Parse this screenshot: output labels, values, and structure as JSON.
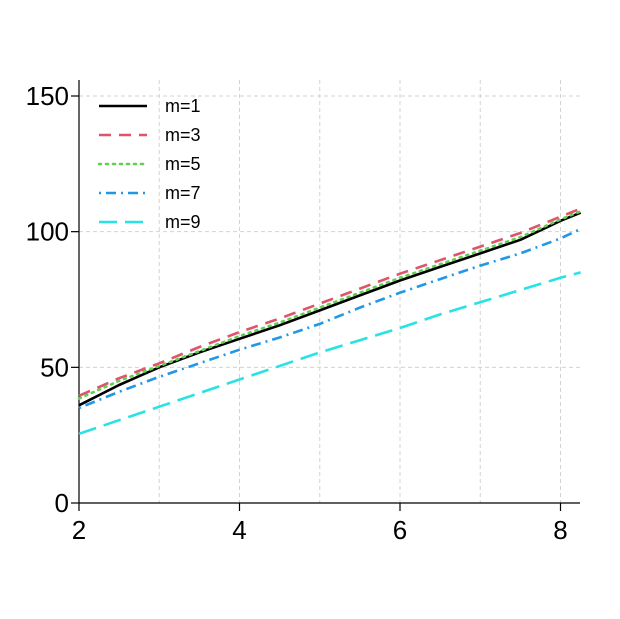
{
  "chart_data": {
    "type": "line",
    "title": "",
    "xlabel": "",
    "ylabel": "",
    "xlim": [
      2,
      8.25
    ],
    "ylim": [
      0,
      150
    ],
    "x_ticks": [
      "2",
      "4",
      "6",
      "8"
    ],
    "y_ticks": [
      "0",
      "50",
      "100",
      "150"
    ],
    "x_tick_values": [
      2,
      4,
      6,
      8
    ],
    "y_tick_values": [
      0,
      50,
      100,
      150
    ],
    "x_minor_ticks": [
      3,
      5,
      7
    ],
    "grid": true,
    "legend_position": "top-left",
    "series": [
      {
        "name": "m=1",
        "color": "#000000",
        "dash": "solid",
        "x": [
          2,
          2.5,
          3,
          3.5,
          4,
          4.5,
          5,
          5.5,
          6,
          6.5,
          7,
          7.5,
          8,
          8.25
        ],
        "y": [
          36,
          43.5,
          50,
          55.5,
          60.5,
          65.5,
          71,
          76.5,
          82,
          87,
          92,
          97,
          104,
          107
        ]
      },
      {
        "name": "m=3",
        "color": "#df536b",
        "dash": "dashed",
        "x": [
          2,
          2.5,
          3,
          3.5,
          4,
          4.5,
          5,
          5.5,
          6,
          6.5,
          7,
          7.5,
          8,
          8.25
        ],
        "y": [
          39.5,
          46,
          51.5,
          57.5,
          63,
          68,
          73.5,
          79,
          84.5,
          89.5,
          94.5,
          99.5,
          105.5,
          108.5
        ]
      },
      {
        "name": "m=5",
        "color": "#61d04f",
        "dash": "dotted",
        "x": [
          2,
          2.5,
          3,
          3.5,
          4,
          4.5,
          5,
          5.5,
          6,
          6.5,
          7,
          7.5,
          8,
          8.25
        ],
        "y": [
          38.5,
          45,
          50.5,
          56,
          61.5,
          66.5,
          72,
          77.5,
          83,
          88,
          93,
          98,
          104.5,
          107.5
        ]
      },
      {
        "name": "m=7",
        "color": "#2297e6",
        "dash": "dotdash",
        "x": [
          2,
          2.5,
          3,
          3.5,
          4,
          4.5,
          5,
          5.5,
          6,
          6.5,
          7,
          7.5,
          8,
          8.25
        ],
        "y": [
          35,
          41,
          46.5,
          51.5,
          56.5,
          61,
          66,
          72,
          77.5,
          82.5,
          87.5,
          92,
          97.5,
          101
        ]
      },
      {
        "name": "m=9",
        "color": "#28e2e5",
        "dash": "longdash",
        "x": [
          2,
          2.5,
          3,
          3.5,
          4,
          4.5,
          5,
          5.5,
          6,
          6.5,
          7,
          7.5,
          8,
          8.25
        ],
        "y": [
          25.5,
          30.5,
          35.5,
          40.5,
          45.5,
          50.5,
          55.5,
          60,
          64.5,
          69.5,
          74,
          78.5,
          83,
          85
        ]
      }
    ]
  }
}
